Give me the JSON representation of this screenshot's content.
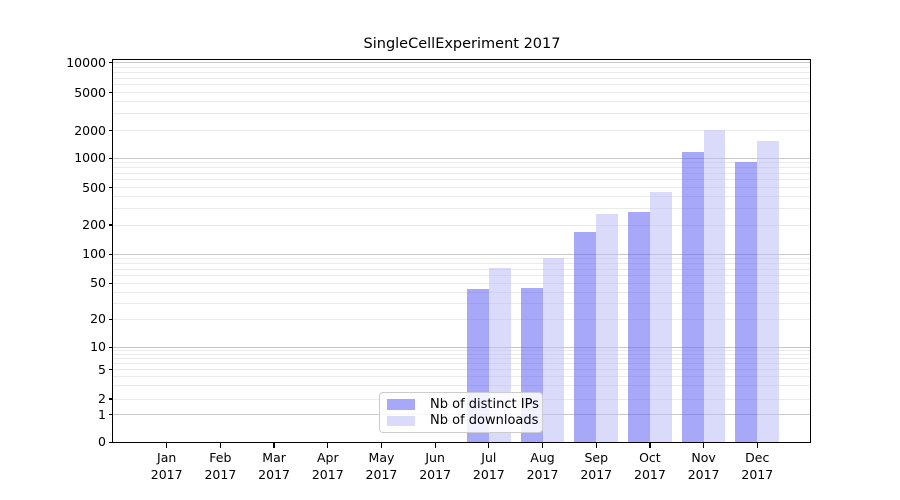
{
  "title": "SingleCellExperiment 2017",
  "colors": {
    "ips_bar": "#6161f2",
    "downloads_bar": "#bcbcf6",
    "bar_alpha": 0.55,
    "grid_major": "#c8c8c8",
    "grid_minor": "#eaeaea",
    "axis": "#000000",
    "legend_border": "#cccccc"
  },
  "chart_data": {
    "type": "bar",
    "title": "SingleCellExperiment 2017",
    "categories": [
      "Jan 2017",
      "Feb 2017",
      "Mar 2017",
      "Apr 2017",
      "May 2017",
      "Jun 2017",
      "Jul 2017",
      "Aug 2017",
      "Sep 2017",
      "Oct 2017",
      "Nov 2017",
      "Dec 2017"
    ],
    "series": [
      {
        "name": "Nb of distinct IPs",
        "key": "distinct-ips",
        "color": "#6161f2",
        "alpha": 0.55,
        "values": [
          0,
          0,
          0,
          0,
          0,
          0,
          43,
          44,
          168,
          273,
          1180,
          910
        ]
      },
      {
        "name": "Nb of downloads",
        "key": "downloads",
        "color": "#bcbcf6",
        "alpha": 0.55,
        "values": [
          0,
          0,
          0,
          0,
          0,
          0,
          72,
          91,
          262,
          450,
          2030,
          1530
        ]
      }
    ],
    "xlabel": "",
    "ylabel": "",
    "y_axis": {
      "scale": "log-like",
      "ticks": [
        0,
        1,
        2,
        5,
        10,
        20,
        50,
        100,
        200,
        500,
        1000,
        2000,
        5000,
        10000
      ],
      "ylim": [
        0,
        10000
      ]
    },
    "grid": {
      "enabled": true,
      "major_values": [
        1,
        10,
        100,
        1000,
        10000
      ],
      "minor_multiples": [
        2,
        3,
        4,
        5,
        6,
        7,
        8,
        9
      ]
    },
    "legend_position": "lower center"
  },
  "legend": {
    "items": [
      {
        "label": "Nb of distinct IPs"
      },
      {
        "label": "Nb of downloads"
      }
    ]
  }
}
